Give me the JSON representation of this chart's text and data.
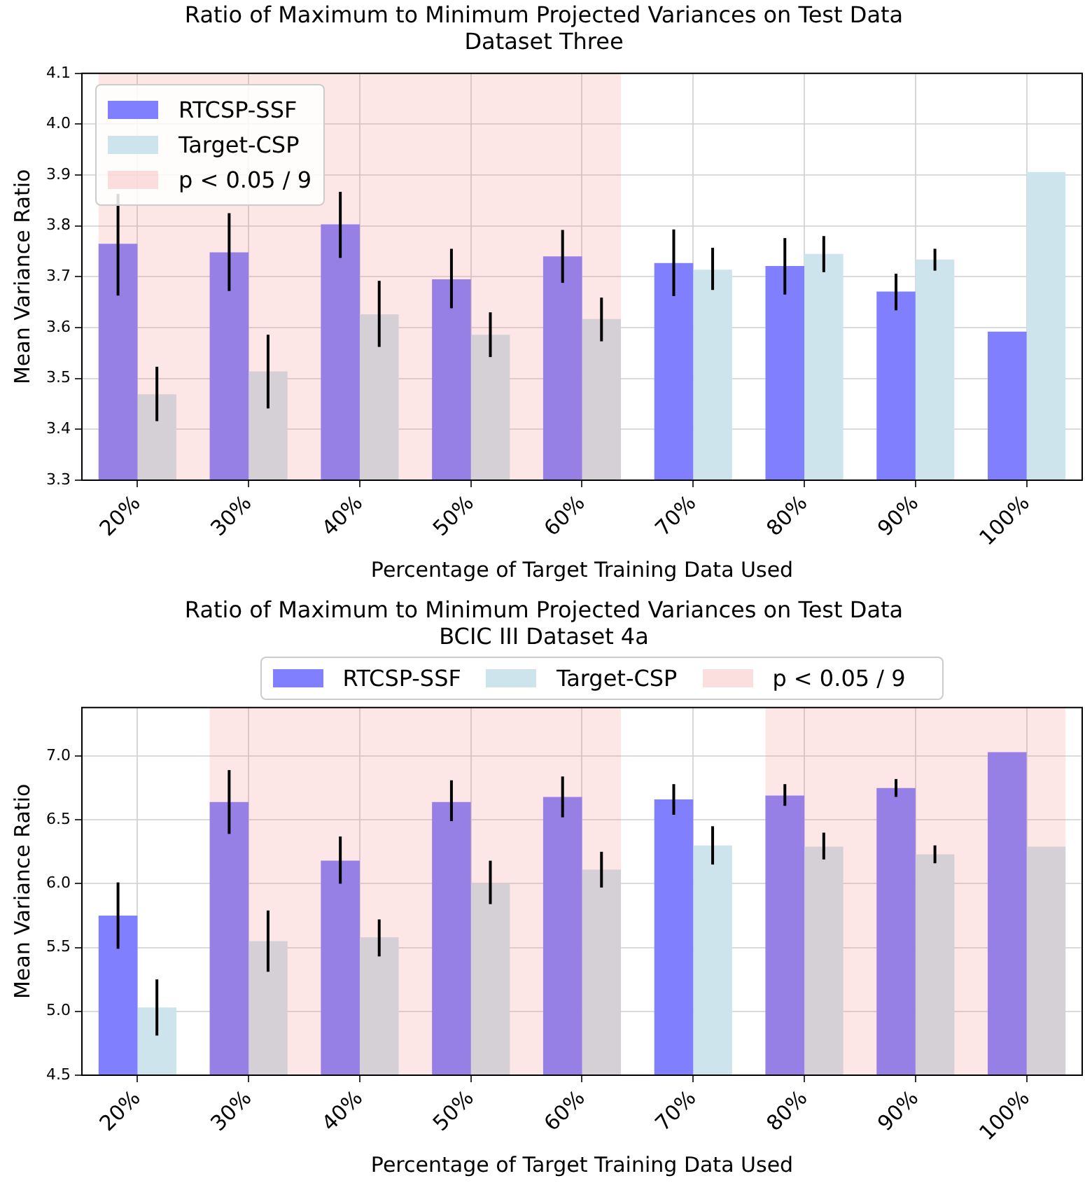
{
  "chart_data": [
    {
      "type": "bar",
      "title": "Ratio of Maximum to Minimum Projected Variances on Test Data",
      "subtitle": "Dataset Three",
      "xlabel": "Percentage of Target Training Data Used",
      "ylabel": "Mean Variance Ratio",
      "categories": [
        "20%",
        "30%",
        "40%",
        "50%",
        "60%",
        "70%",
        "80%",
        "90%",
        "100%"
      ],
      "series": [
        {
          "name": "RTCSP-SSF",
          "color": "#8080ff",
          "values": [
            3.765,
            3.748,
            3.803,
            3.695,
            3.74,
            3.727,
            3.721,
            3.671,
            3.592
          ],
          "errors": [
            [
              3.663,
              3.863
            ],
            [
              3.672,
              3.825
            ],
            [
              3.737,
              3.867
            ],
            [
              3.638,
              3.755
            ],
            [
              3.688,
              3.792
            ],
            [
              3.662,
              3.793
            ],
            [
              3.665,
              3.776
            ],
            [
              3.634,
              3.706
            ],
            null
          ]
        },
        {
          "name": "Target-CSP",
          "color": "#cde4ec",
          "values": [
            3.469,
            3.514,
            3.626,
            3.586,
            3.617,
            3.714,
            3.745,
            3.734,
            3.906
          ],
          "errors": [
            [
              3.416,
              3.523
            ],
            [
              3.441,
              3.586
            ],
            [
              3.562,
              3.692
            ],
            [
              3.542,
              3.63
            ],
            [
              3.573,
              3.659
            ],
            [
              3.674,
              3.757
            ],
            [
              3.709,
              3.78
            ],
            [
              3.712,
              3.755
            ],
            null
          ]
        }
      ],
      "bands": [
        {
          "axis": "x",
          "from": "20%",
          "to": "60%",
          "label": "p < 0.05 / 9",
          "color": "#f08080"
        }
      ],
      "ylim": [
        3.3,
        4.1
      ],
      "yticks": [
        3.3,
        3.4,
        3.5,
        3.6,
        3.7,
        3.8,
        3.9,
        {
          "value": 4.0,
          "label": "4.0"
        },
        4.1
      ],
      "grid": true,
      "legend": "top left"
    },
    {
      "type": "bar",
      "title": "Ratio of Maximum to Minimum Projected Variances on Test Data",
      "subtitle": "BCIC III Dataset 4a",
      "xlabel": "Percentage of Target Training Data Used",
      "ylabel": "Mean Variance Ratio",
      "categories": [
        "20%",
        "30%",
        "40%",
        "50%",
        "60%",
        "70%",
        "80%",
        "90%",
        "100%"
      ],
      "series": [
        {
          "name": "RTCSP-SSF",
          "color": "#8080ff",
          "values": [
            5.75,
            6.64,
            6.18,
            6.64,
            6.68,
            6.66,
            6.69,
            6.75,
            7.03
          ],
          "errors": [
            [
              5.49,
              6.01
            ],
            [
              6.39,
              6.89
            ],
            [
              6.0,
              6.37
            ],
            [
              6.49,
              6.81
            ],
            [
              6.52,
              6.84
            ],
            [
              6.54,
              6.78
            ],
            [
              6.61,
              6.78
            ],
            [
              6.68,
              6.82
            ],
            null
          ]
        },
        {
          "name": "Target-CSP",
          "color": "#cde4ec",
          "values": [
            5.03,
            5.55,
            5.58,
            6.0,
            6.11,
            6.3,
            6.29,
            6.23,
            6.29
          ],
          "errors": [
            [
              4.81,
              5.25
            ],
            [
              5.31,
              5.79
            ],
            [
              5.43,
              5.72
            ],
            [
              5.84,
              6.18
            ],
            [
              5.97,
              6.25
            ],
            [
              6.15,
              6.45
            ],
            [
              6.19,
              6.4
            ],
            [
              6.16,
              6.3
            ],
            null
          ]
        }
      ],
      "bands": [
        {
          "axis": "x",
          "from": "30%",
          "to": "60%",
          "label": "p < 0.05 / 9",
          "color": "#f08080"
        },
        {
          "axis": "x",
          "from": "80%",
          "to": "100%",
          "color": "#f08080"
        }
      ],
      "ylim": [
        4.5,
        7.38
      ],
      "yticks": [
        4.5,
        {
          "value": 5.0,
          "label": "5.0"
        },
        5.5,
        {
          "value": 6.0,
          "label": "6.0"
        },
        6.5,
        {
          "value": 7.0,
          "label": "7.0"
        }
      ],
      "grid": true,
      "legend": "top"
    }
  ]
}
